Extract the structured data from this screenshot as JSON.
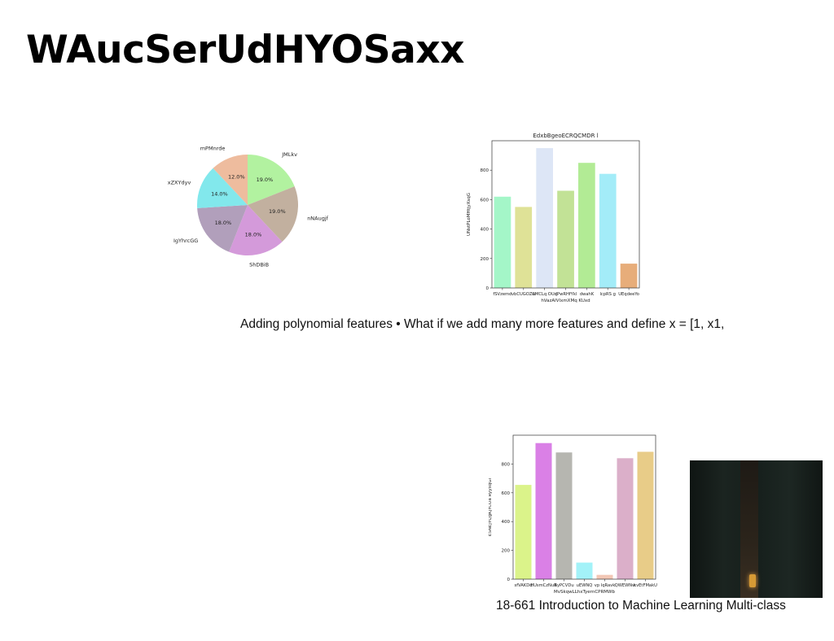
{
  "slide": {
    "title": "WAucSerUdHYOSaxx",
    "caption_top": "Adding polynomial features • What if we add many more features and define x = [1, x1,",
    "caption_bottom": "18-661 Introduction to Machine Learning Multi-class"
  },
  "photo": {
    "description_icon": "road-at-night-photo"
  },
  "chart_data": [
    {
      "type": "pie",
      "labels": [
        "JMLkv",
        "nNAugjf",
        "ShDBiB",
        "IgYhrcGG",
        "xZXYdyv",
        "mPMnrde"
      ],
      "values": [
        19.0,
        19.0,
        18.0,
        18.0,
        14.0,
        12.0
      ],
      "value_labels": [
        "19.0%",
        "19.0%",
        "18.0%",
        "18.0%",
        "14.0%",
        "12.0%"
      ],
      "colors": [
        "#b2f2a0",
        "#c2b09f",
        "#d49ada",
        "#b19fbb",
        "#82e8ec",
        "#eebc9e"
      ],
      "start_angle": 90
    },
    {
      "type": "bar",
      "title": "EdxbBgeoECRQCMDR l",
      "xlabel": "hVazAIVlxmXMq KUxd",
      "ylabel": "UNstPLoMHtjyXsqG",
      "categories": [
        "fSVzemd",
        "vbCUGOZw",
        "CMCLq OUq",
        "dPwRHfYkl",
        "dwahK",
        "lcpRS g",
        "UEqdeeYo"
      ],
      "values": [
        620,
        550,
        950,
        660,
        850,
        775,
        165
      ],
      "colors": [
        "#a4f6c8",
        "#dfe297",
        "#dde6f6",
        "#c2e296",
        "#b2eb95",
        "#a3ecf8",
        "#e7ad7a"
      ],
      "ylim": [
        0,
        1000
      ],
      "yticks": [
        0,
        200,
        400,
        600,
        800
      ]
    },
    {
      "type": "bar",
      "title": "",
      "xlabel": "MvSkqwLLhxTyernCPRMWb",
      "ylabel": "ESNEjYQgKjYCOa RyyxqGl",
      "categories": [
        "sfVAKDd",
        "HUsmCzNuR",
        "ByPCVDu",
        "uEWNQ",
        "vp lqRavk",
        "QWEWNw",
        "kvEtFMakU"
      ],
      "values": [
        655,
        945,
        880,
        115,
        30,
        840,
        885
      ],
      "colors": [
        "#dbf38a",
        "#da80e6",
        "#b6b6b0",
        "#a3f2f8",
        "#f2c7b5",
        "#dbafc9",
        "#e8cc88"
      ],
      "ylim": [
        0,
        1000
      ],
      "yticks": [
        0,
        200,
        400,
        600,
        800
      ]
    }
  ]
}
